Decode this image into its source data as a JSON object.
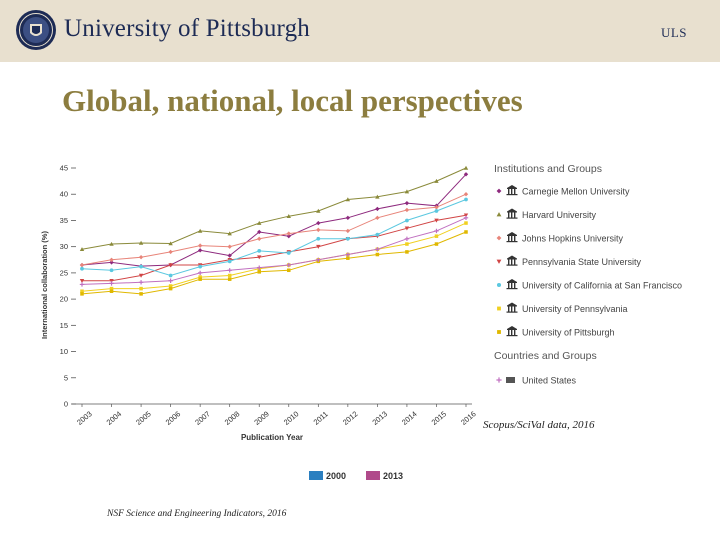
{
  "header": {
    "university_name": "University of Pittsburgh",
    "tag": "ULS"
  },
  "slide": {
    "title": "Global, national, local  perspectives",
    "source_right": "Scopus/SciVal data, 2016",
    "source_left": "NSF Science and Engineering Indicators, 2016"
  },
  "colors": {
    "header_bg": "#e8e0cf",
    "header_text": "#1d2b55",
    "title": "#8c7d3f",
    "legend_2000": "#2b7fc0",
    "legend_2013": "#b04a8a"
  },
  "legend_bar": {
    "items": [
      {
        "label": "2000",
        "color": "#2b7fc0"
      },
      {
        "label": "2013",
        "color": "#b04a8a"
      }
    ]
  },
  "chart_data": {
    "type": "line",
    "title": "",
    "xlabel": "Publication Year",
    "ylabel": "International collaboration (%)",
    "x": [
      2003,
      2004,
      2005,
      2006,
      2007,
      2008,
      2009,
      2010,
      2011,
      2012,
      2013,
      2014,
      2015,
      2016
    ],
    "ylim": [
      0,
      45
    ],
    "yticks": [
      0,
      5,
      10,
      15,
      20,
      25,
      30,
      35,
      40,
      45
    ],
    "grid": false,
    "legend_position": "right",
    "legend_title_1": "Institutions and Groups",
    "legend_title_2": "Countries and Groups",
    "series": [
      {
        "name": "Carnegie Mellon University",
        "color": "#8e2a7e",
        "marker": "diamond",
        "values": [
          26.5,
          27.0,
          26.3,
          26.5,
          29.3,
          28.3,
          32.8,
          32.0,
          34.5,
          35.5,
          37.2,
          38.3,
          37.8,
          43.8
        ]
      },
      {
        "name": "Harvard University",
        "color": "#8a8a3a",
        "marker": "triangle",
        "values": [
          29.5,
          30.5,
          30.7,
          30.6,
          33.0,
          32.5,
          34.5,
          35.8,
          36.8,
          39.0,
          39.5,
          40.5,
          42.5,
          45.0
        ]
      },
      {
        "name": "Johns Hopkins University",
        "color": "#e8857a",
        "marker": "diamond",
        "values": [
          26.5,
          27.5,
          28.0,
          29.0,
          30.2,
          30.0,
          31.5,
          32.5,
          33.2,
          33.0,
          35.5,
          37.0,
          37.5,
          40.0
        ]
      },
      {
        "name": "Pennsylvania State University",
        "color": "#d14545",
        "marker": "triangle-down",
        "values": [
          23.5,
          23.5,
          24.5,
          26.5,
          26.5,
          27.5,
          28.0,
          29.0,
          30.0,
          31.5,
          32.0,
          33.5,
          35.0,
          36.0
        ]
      },
      {
        "name": "University of California at San Francisco",
        "color": "#5bc8e0",
        "marker": "circle",
        "values": [
          25.8,
          25.5,
          26.2,
          24.5,
          26.2,
          27.2,
          29.2,
          28.8,
          31.5,
          31.5,
          32.3,
          35.0,
          36.8,
          39.0
        ]
      },
      {
        "name": "University of Pennsylvania",
        "color": "#f0d020",
        "marker": "square",
        "values": [
          21.5,
          22.0,
          22.0,
          22.5,
          24.2,
          24.5,
          25.8,
          26.5,
          27.5,
          28.5,
          29.5,
          30.5,
          32.0,
          34.5
        ]
      },
      {
        "name": "University of Pittsburgh",
        "color": "#e0b800",
        "marker": "square",
        "values": [
          21.0,
          21.5,
          21.0,
          22.0,
          23.8,
          23.8,
          25.2,
          25.5,
          27.2,
          27.8,
          28.5,
          29.0,
          30.5,
          32.8
        ]
      },
      {
        "name": "United States",
        "color": "#c070c0",
        "marker": "plus",
        "values": [
          22.8,
          23.0,
          23.2,
          23.5,
          25.0,
          25.5,
          26.0,
          26.5,
          27.5,
          28.5,
          29.5,
          31.5,
          33.0,
          35.5
        ]
      }
    ]
  }
}
